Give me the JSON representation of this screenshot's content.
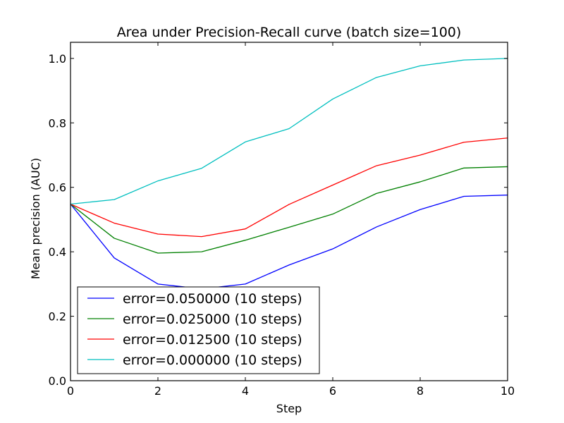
{
  "chart_data": {
    "type": "line",
    "title": "Area under Precision-Recall curve (batch size=100)",
    "xlabel": "Step",
    "ylabel": "Mean precision (AUC)",
    "xlim": [
      0,
      10
    ],
    "ylim": [
      0,
      1.05
    ],
    "x_ticks": [
      "0",
      "2",
      "4",
      "6",
      "8",
      "10"
    ],
    "y_ticks": [
      "0.0",
      "0.2",
      "0.4",
      "0.6",
      "0.8",
      "1.0"
    ],
    "grid": false,
    "legend_position": "lower-left",
    "x": [
      0,
      1,
      2,
      3,
      4,
      5,
      6,
      7,
      8,
      9,
      10
    ],
    "series": [
      {
        "name": "error=0.050000 (10 steps)",
        "color": "#0000ff",
        "values": [
          0.548,
          0.381,
          0.3,
          0.285,
          0.3,
          0.359,
          0.409,
          0.477,
          0.531,
          0.572,
          0.576
        ]
      },
      {
        "name": "error=0.025000 (10 steps)",
        "color": "#008000",
        "values": [
          0.548,
          0.442,
          0.396,
          0.4,
          0.436,
          0.476,
          0.517,
          0.581,
          0.617,
          0.66,
          0.664
        ]
      },
      {
        "name": "error=0.012500 (10 steps)",
        "color": "#ff0000",
        "values": [
          0.548,
          0.489,
          0.455,
          0.447,
          0.471,
          0.547,
          0.607,
          0.667,
          0.7,
          0.74,
          0.753
        ]
      },
      {
        "name": "error=0.000000 (10 steps)",
        "color": "#00bfbf",
        "values": [
          0.548,
          0.562,
          0.62,
          0.659,
          0.741,
          0.782,
          0.874,
          0.941,
          0.977,
          0.995,
          1.0
        ]
      }
    ]
  }
}
